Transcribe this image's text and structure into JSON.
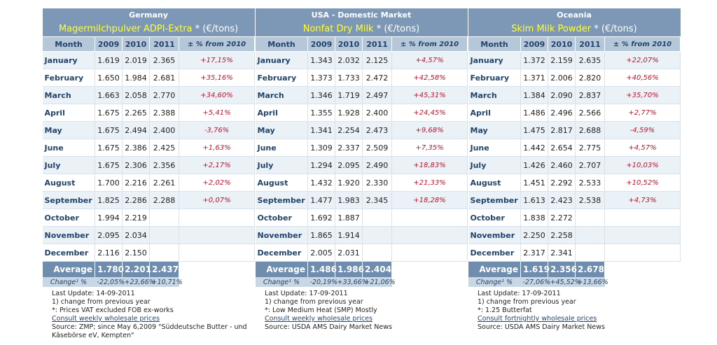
{
  "columns": [
    "Month",
    "2009",
    "2010",
    "2011",
    "± % from 2010"
  ],
  "panels": [
    {
      "region": "Germany",
      "product": "Magermilchpulver ADPI-Extra",
      "unit": "* (€/tons)",
      "rows": [
        [
          "January",
          "1.619",
          "2.019",
          "2.365",
          "+17,15%"
        ],
        [
          "February",
          "1.650",
          "1.984",
          "2.681",
          "+35,16%"
        ],
        [
          "March",
          "1.663",
          "2.058",
          "2.770",
          "+34,60%"
        ],
        [
          "April",
          "1.675",
          "2.265",
          "2.388",
          "+5,41%"
        ],
        [
          "May",
          "1.675",
          "2.494",
          "2.400",
          "-3,76%"
        ],
        [
          "June",
          "1.675",
          "2.386",
          "2.425",
          "+1,63%"
        ],
        [
          "July",
          "1.675",
          "2.306",
          "2.356",
          "+2,17%"
        ],
        [
          "August",
          "1.700",
          "2.216",
          "2.261",
          "+2,02%"
        ],
        [
          "September",
          "1.825",
          "2.286",
          "2.288",
          "+0,07%"
        ],
        [
          "October",
          "1.994",
          "2.219"
        ],
        [
          "November",
          "2.095",
          "2.034"
        ],
        [
          "December",
          "2.116",
          "2.150"
        ]
      ],
      "average": [
        "Average",
        "1.780",
        "2.201",
        "2.437"
      ],
      "change": [
        "Change¹ %",
        "-22,05%",
        "+23,66%",
        "+10,71%"
      ],
      "notes": [
        "Last Update: 14-09-2011",
        "1) change from previous year",
        "*: Prices VAT excluded FOB ex-works"
      ],
      "link": "Consult weekly wholesale prices",
      "source": "Source: ZMP; since May 6,2009 \"Süddeutsche Butter - und Käsebörse eV, Kempten\""
    },
    {
      "region": "USA - Domestic Market",
      "product": "Nonfat Dry Milk",
      "unit": "* (€/tons)",
      "rows": [
        [
          "January",
          "1.343",
          "2.032",
          "2.125",
          "+4,57%"
        ],
        [
          "February",
          "1.373",
          "1.733",
          "2.472",
          "+42,58%"
        ],
        [
          "March",
          "1.346",
          "1.719",
          "2.497",
          "+45,31%"
        ],
        [
          "April",
          "1.355",
          "1.928",
          "2.400",
          "+24,45%"
        ],
        [
          "May",
          "1.341",
          "2.254",
          "2.473",
          "+9,68%"
        ],
        [
          "June",
          "1.309",
          "2.337",
          "2.509",
          "+7,35%"
        ],
        [
          "July",
          "1.294",
          "2.095",
          "2.490",
          "+18,83%"
        ],
        [
          "August",
          "1.432",
          "1.920",
          "2.330",
          "+21,33%"
        ],
        [
          "September",
          "1.477",
          "1.983",
          "2.345",
          "+18,28%"
        ],
        [
          "October",
          "1.692",
          "1.887"
        ],
        [
          "November",
          "1.865",
          "1.914"
        ],
        [
          "December",
          "2.005",
          "2.031"
        ]
      ],
      "average": [
        "Average",
        "1.486",
        "1.986",
        "2.404"
      ],
      "change": [
        "Change¹ %",
        "-20,19%",
        "+33,66%",
        "+21,06%"
      ],
      "notes": [
        "Last Update: 17-09-2011",
        "1) change from previous year",
        "*: Low Medium Heat (SMP) Mostly"
      ],
      "link": "Consult weekly wholesale prices",
      "source": "Source: USDA AMS Dairy Market News"
    },
    {
      "region": "Oceania",
      "product": "Skim Milk Powder",
      "unit": "* (€/tons)",
      "rows": [
        [
          "January",
          "1.372",
          "2.159",
          "2.635",
          "+22,07%"
        ],
        [
          "February",
          "1.371",
          "2.006",
          "2.820",
          "+40,56%"
        ],
        [
          "March",
          "1.384",
          "2.090",
          "2.837",
          "+35,70%"
        ],
        [
          "April",
          "1.486",
          "2.496",
          "2.566",
          "+2,77%"
        ],
        [
          "May",
          "1.475",
          "2.817",
          "2.688",
          "-4,59%"
        ],
        [
          "June",
          "1.442",
          "2.654",
          "2.775",
          "+4,57%"
        ],
        [
          "July",
          "1.426",
          "2.460",
          "2.707",
          "+10,03%"
        ],
        [
          "August",
          "1.451",
          "2.292",
          "2.533",
          "+10,52%"
        ],
        [
          "September",
          "1.613",
          "2.423",
          "2.538",
          "+4,73%"
        ],
        [
          "October",
          "1.838",
          "2.272"
        ],
        [
          "November",
          "2.250",
          "2.258"
        ],
        [
          "December",
          "2.317",
          "2.341"
        ]
      ],
      "average": [
        "Average",
        "1.619",
        "2.356",
        "2.678"
      ],
      "change": [
        "Change¹ %",
        "-27,06%",
        "+45,52%",
        "+13,66%"
      ],
      "notes": [
        "Last Update: 17-09-2011",
        "1) change from previous year",
        "*: 1.25 Butterfat"
      ],
      "link": "Consult fortnightly wholesale prices",
      "source": "Source: USDA AMS Dairy Market News"
    }
  ]
}
